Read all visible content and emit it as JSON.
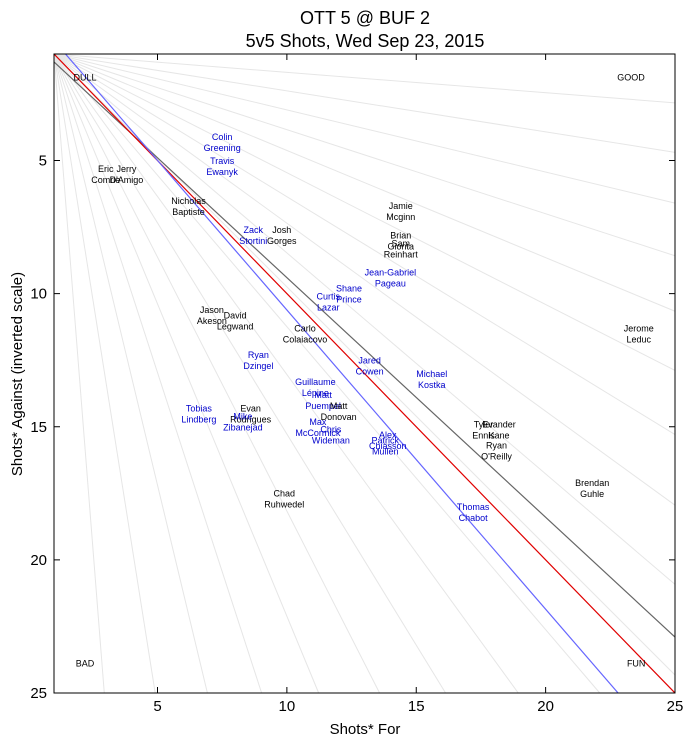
{
  "chart_data": {
    "type": "scatter",
    "title": "OTT 5 @ BUF 2",
    "subtitle": "5v5 Shots, Wed Sep 23, 2015",
    "xlabel": "Shots* For",
    "ylabel": "Shots* Against (inverted scale)",
    "xlim": [
      1,
      25
    ],
    "ylim": [
      25,
      1
    ],
    "y_inverted": true,
    "x_ticks": [
      "5",
      "10",
      "15",
      "20",
      "25"
    ],
    "y_ticks": [
      "5",
      "10",
      "15",
      "20",
      "25"
    ],
    "corner_labels": {
      "top_left": "DULL",
      "top_right": "GOOD",
      "bottom_left": "BAD",
      "bottom_right": "FUN"
    },
    "colors": {
      "OTT": "#0000cc",
      "BUF": "#000000",
      "diagonal": "#e00000",
      "ott_line": "#6666ff",
      "buf_line": "#666666",
      "rays": "#e6e6e6"
    },
    "reference_lines": [
      {
        "team": "BUF",
        "x": [
          1,
          25
        ],
        "y": [
          1.3,
          22.9
        ]
      },
      {
        "team": "diagonal",
        "x": [
          1,
          25
        ],
        "y": [
          1,
          25
        ]
      },
      {
        "team": "OTT",
        "x": [
          1,
          22.8
        ],
        "y": [
          0.5,
          25
        ]
      }
    ],
    "players": [
      {
        "name": "Colin Greening",
        "team": "OTT",
        "x": 7.5,
        "y": 4.3
      },
      {
        "name": "Travis Ewanyk",
        "team": "OTT",
        "x": 7.5,
        "y": 5.2
      },
      {
        "name": "Eric Comrie",
        "team": "BUF",
        "x": 3.0,
        "y": 5.5
      },
      {
        "name": "Jerry D'Amigo",
        "team": "BUF",
        "x": 3.8,
        "y": 5.5
      },
      {
        "name": "Nicholas Baptiste",
        "team": "BUF",
        "x": 6.2,
        "y": 6.7
      },
      {
        "name": "Jamie Mcginn",
        "team": "BUF",
        "x": 14.4,
        "y": 6.9
      },
      {
        "name": "Zack Stortini",
        "team": "OTT",
        "x": 8.7,
        "y": 7.8
      },
      {
        "name": "Josh Gorges",
        "team": "BUF",
        "x": 9.8,
        "y": 7.8
      },
      {
        "name": "Brian Gionta",
        "team": "BUF",
        "x": 14.4,
        "y": 8.0
      },
      {
        "name": "Sam Reinhart",
        "team": "BUF",
        "x": 14.4,
        "y": 8.3
      },
      {
        "name": "Jean-Gabriel Pageau",
        "team": "OTT",
        "x": 14.0,
        "y": 9.4
      },
      {
        "name": "Shane Prince",
        "team": "OTT",
        "x": 12.4,
        "y": 10.0
      },
      {
        "name": "Curtis Lazar",
        "team": "OTT",
        "x": 11.6,
        "y": 10.3
      },
      {
        "name": "Jason Akeson",
        "team": "BUF",
        "x": 7.1,
        "y": 10.8
      },
      {
        "name": "David Legwand",
        "team": "BUF",
        "x": 8.0,
        "y": 11.0
      },
      {
        "name": "Carlo Colaiacovo",
        "team": "BUF",
        "x": 10.7,
        "y": 11.5
      },
      {
        "name": "Jerome Leduc",
        "team": "BUF",
        "x": 23.6,
        "y": 11.5
      },
      {
        "name": "Ryan Dzingel",
        "team": "OTT",
        "x": 8.9,
        "y": 12.5
      },
      {
        "name": "Jared Cowen",
        "team": "OTT",
        "x": 13.2,
        "y": 12.7
      },
      {
        "name": "Michael Kostka",
        "team": "OTT",
        "x": 15.6,
        "y": 13.2
      },
      {
        "name": "Guillaume Lépine",
        "team": "OTT",
        "x": 11.1,
        "y": 13.5
      },
      {
        "name": "Matt Puempel",
        "team": "OTT",
        "x": 11.4,
        "y": 14.0
      },
      {
        "name": "Matt Donovan",
        "team": "BUF",
        "x": 12.0,
        "y": 14.4
      },
      {
        "name": "Tobias Lindberg",
        "team": "OTT",
        "x": 6.6,
        "y": 14.5
      },
      {
        "name": "Evan Rodrigues",
        "team": "BUF",
        "x": 8.6,
        "y": 14.5
      },
      {
        "name": "Mike Zibanejad",
        "team": "OTT",
        "x": 8.3,
        "y": 14.8
      },
      {
        "name": "Max McCormick",
        "team": "OTT",
        "x": 11.2,
        "y": 15.0
      },
      {
        "name": "Chris Wideman",
        "team": "OTT",
        "x": 11.7,
        "y": 15.3
      },
      {
        "name": "Tyler Ennis",
        "team": "BUF",
        "x": 17.6,
        "y": 15.1
      },
      {
        "name": "Evander Kane",
        "team": "BUF",
        "x": 18.2,
        "y": 15.1
      },
      {
        "name": "Alex Chiasson",
        "team": "OTT",
        "x": 13.9,
        "y": 15.5
      },
      {
        "name": "Patrick Mullen",
        "team": "OTT",
        "x": 13.8,
        "y": 15.7
      },
      {
        "name": "Ryan O'Reilly",
        "team": "BUF",
        "x": 18.1,
        "y": 15.9
      },
      {
        "name": "Brendan Guhle",
        "team": "BUF",
        "x": 21.8,
        "y": 17.3
      },
      {
        "name": "Chad Ruhwedel",
        "team": "BUF",
        "x": 9.9,
        "y": 17.7
      },
      {
        "name": "Thomas Chabot",
        "team": "OTT",
        "x": 17.2,
        "y": 18.2
      }
    ]
  }
}
